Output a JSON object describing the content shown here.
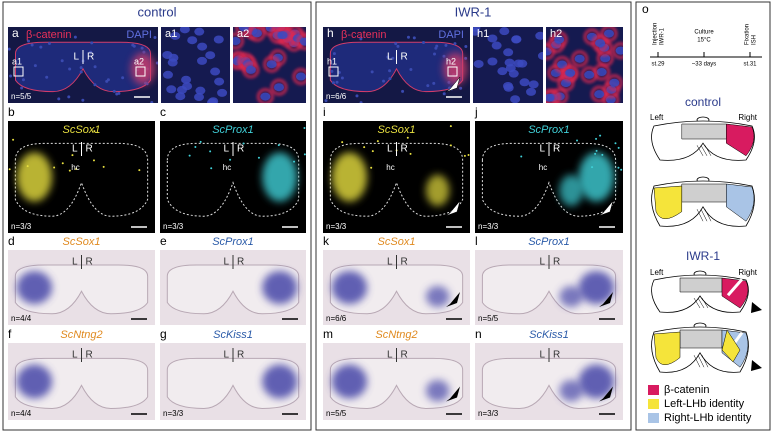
{
  "groups": [
    "control",
    "IWR-1"
  ],
  "orientation": {
    "left": "L",
    "right": "R",
    "habenular_commissure": "hc"
  },
  "panels": [
    {
      "letter": "a",
      "marker": "β-catenin",
      "counter": "DAPI",
      "insets": [
        "a1",
        "a2"
      ],
      "n": "n=5/5"
    },
    {
      "letter": "h",
      "marker": "β-catenin",
      "counter": "DAPI",
      "insets": [
        "h1",
        "h2"
      ],
      "n": "n=6/6"
    },
    {
      "letter": "b",
      "gene": "ScSox1",
      "n": "n=3/3"
    },
    {
      "letter": "c",
      "gene": "ScProx1",
      "n": "n=3/3"
    },
    {
      "letter": "i",
      "gene": "ScSox1",
      "n": "n=3/3"
    },
    {
      "letter": "j",
      "gene": "ScProx1",
      "n": "n=3/3"
    },
    {
      "letter": "d",
      "gene": "ScSox1",
      "n": "n=4/4"
    },
    {
      "letter": "e",
      "gene": "ScProx1"
    },
    {
      "letter": "k",
      "gene": "ScSox1",
      "n": "n=6/6"
    },
    {
      "letter": "l",
      "gene": "ScProx1",
      "n": "n=5/5"
    },
    {
      "letter": "f",
      "gene": "ScNtng2",
      "n": "n=4/4"
    },
    {
      "letter": "g",
      "gene": "ScKiss1",
      "n": "n=3/3"
    },
    {
      "letter": "m",
      "gene": "ScNtng2",
      "n": "n=5/5"
    },
    {
      "letter": "n",
      "gene": "ScKiss1",
      "n": "n=3/3"
    }
  ],
  "schematic": {
    "letter": "o",
    "timeline": [
      [
        "Injection",
        "IWR-1"
      ],
      [
        "Culture",
        "15°C"
      ],
      [
        "Fixation",
        "ISH"
      ]
    ],
    "stages": [
      "st.29",
      "~33 days",
      "st.31"
    ],
    "groups": [
      "control",
      "IWR-1"
    ],
    "sides": [
      "Left",
      "Right"
    ],
    "legend": [
      {
        "label": "β-catenin",
        "color": "#d81b60"
      },
      {
        "label": "Left-LHb identity",
        "color": "#f5e43a"
      },
      {
        "label": "Right-LHb identity",
        "color": "#a9c4e6"
      }
    ]
  }
}
